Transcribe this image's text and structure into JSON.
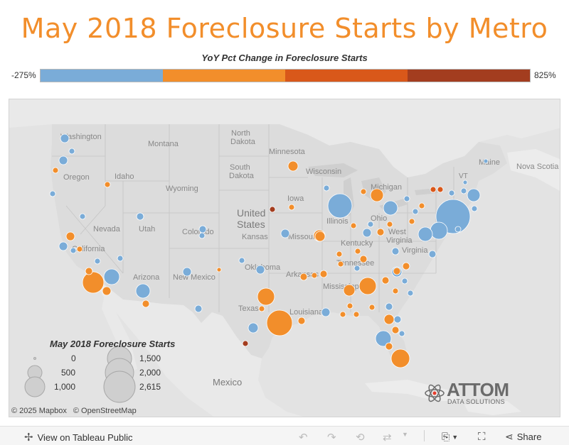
{
  "title": "May 2018 Foreclosure Starts by Metro",
  "color_legend": {
    "title": "YoY Pct Change in Foreclosure Starts",
    "min_label": "-275%",
    "max_label": "825%",
    "segments": [
      "#7aacd8",
      "#f28e2b",
      "#d9581a",
      "#a33d1f"
    ]
  },
  "map_labels": {
    "washington": "Washington",
    "montana": "Montana",
    "north_dakota_1": "North",
    "north_dakota_2": "Dakota",
    "minnesota": "Minnesota",
    "oregon": "Oregon",
    "idaho": "Idaho",
    "south_dakota_1": "South",
    "south_dakota_2": "Dakota",
    "wisconsin": "Wisconsin",
    "michigan": "Michigan",
    "wyoming": "Wyoming",
    "iowa": "Iowa",
    "nevada": "Nevada",
    "utah": "Utah",
    "colorado": "Colorado",
    "kansas": "Kansas",
    "missouri": "Missouri",
    "illinois": "Illinois",
    "ohio": "Ohio",
    "united_1": "United",
    "united_2": "States",
    "california": "California",
    "arizona": "Arizona",
    "new_mexico": "New Mexico",
    "oklahoma": "Oklahoma",
    "arkansas": "Arkansas",
    "tennessee": "Tennessee",
    "kentucky": "Kentucky",
    "west_virginia_1": "West",
    "west_virginia_2": "Virginia",
    "virginia": "Virginia",
    "mississippi": "Mississippi",
    "texas": "Texas",
    "louisiana": "Louisiana",
    "nova_scotia": "Nova Scotia",
    "maine": "Maine",
    "vt": "VT",
    "mexico": "Mexico"
  },
  "size_legend": {
    "title": "May 2018 Foreclosure Starts",
    "items": [
      {
        "label": "0",
        "value": 0
      },
      {
        "label": "500",
        "value": 500
      },
      {
        "label": "1,000",
        "value": 1000
      },
      {
        "label": "1,500",
        "value": 1500
      },
      {
        "label": "2,000",
        "value": 2000
      },
      {
        "label": "2,615",
        "value": 2615
      }
    ]
  },
  "credits": [
    "© 2025 Mapbox",
    "© OpenStreetMap"
  ],
  "logo": {
    "brand": "ATTOM",
    "sub": "DATA SOLUTIONS"
  },
  "toolbar": {
    "view_label": "View on Tableau Public",
    "share_label": "Share"
  }
}
